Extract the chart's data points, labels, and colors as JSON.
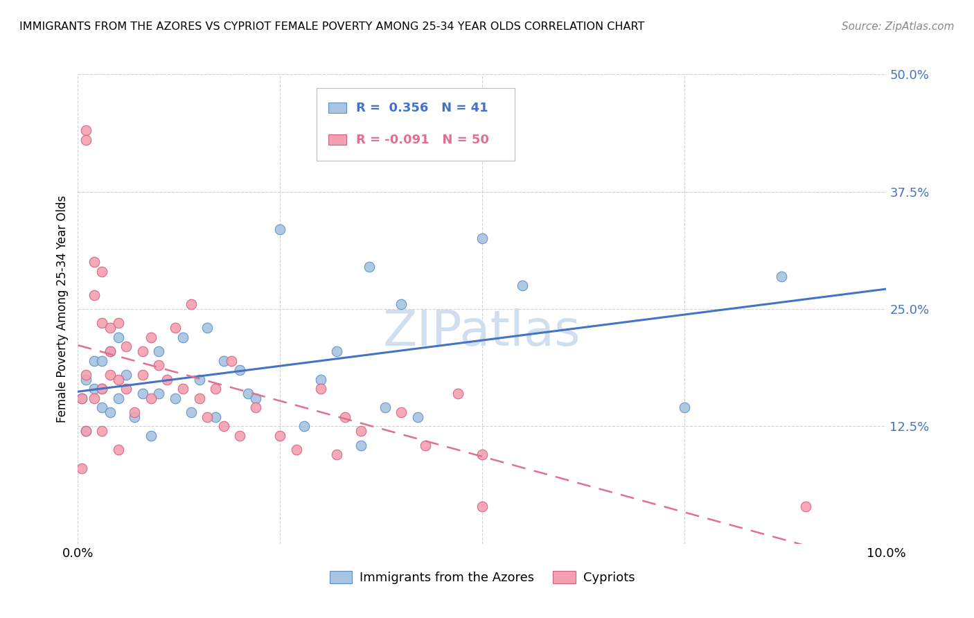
{
  "title": "IMMIGRANTS FROM THE AZORES VS CYPRIOT FEMALE POVERTY AMONG 25-34 YEAR OLDS CORRELATION CHART",
  "source": "Source: ZipAtlas.com",
  "ylabel": "Female Poverty Among 25-34 Year Olds",
  "xlim": [
    0.0,
    0.1
  ],
  "ylim": [
    0.0,
    0.5
  ],
  "yticks": [
    0.0,
    0.125,
    0.25,
    0.375,
    0.5
  ],
  "yticklabels": [
    "",
    "12.5%",
    "25.0%",
    "37.5%",
    "50.0%"
  ],
  "xticks": [
    0.0,
    0.025,
    0.05,
    0.075,
    0.1
  ],
  "xticklabels": [
    "0.0%",
    "",
    "",
    "",
    "10.0%"
  ],
  "legend_labels": [
    "Immigrants from the Azores",
    "Cypriots"
  ],
  "blue_color": "#a8c4e0",
  "pink_color": "#f4a0b0",
  "blue_edge_color": "#5b8cc8",
  "pink_edge_color": "#d06080",
  "blue_line_color": "#4472c4",
  "pink_line_color": "#e07090",
  "blue_R": 0.356,
  "blue_N": 41,
  "pink_R": -0.091,
  "pink_N": 50,
  "blue_scatter_x": [
    0.0005,
    0.001,
    0.001,
    0.002,
    0.002,
    0.003,
    0.003,
    0.003,
    0.004,
    0.004,
    0.005,
    0.005,
    0.006,
    0.007,
    0.008,
    0.009,
    0.01,
    0.01,
    0.012,
    0.013,
    0.014,
    0.015,
    0.016,
    0.017,
    0.018,
    0.02,
    0.021,
    0.022,
    0.025,
    0.028,
    0.03,
    0.032,
    0.035,
    0.036,
    0.038,
    0.04,
    0.042,
    0.05,
    0.055,
    0.075,
    0.087
  ],
  "blue_scatter_y": [
    0.155,
    0.175,
    0.12,
    0.195,
    0.165,
    0.195,
    0.165,
    0.145,
    0.205,
    0.14,
    0.22,
    0.155,
    0.18,
    0.135,
    0.16,
    0.115,
    0.205,
    0.16,
    0.155,
    0.22,
    0.14,
    0.175,
    0.23,
    0.135,
    0.195,
    0.185,
    0.16,
    0.155,
    0.335,
    0.125,
    0.175,
    0.205,
    0.105,
    0.295,
    0.145,
    0.255,
    0.135,
    0.325,
    0.275,
    0.145,
    0.285
  ],
  "pink_scatter_x": [
    0.0005,
    0.0005,
    0.001,
    0.001,
    0.001,
    0.001,
    0.002,
    0.002,
    0.002,
    0.003,
    0.003,
    0.003,
    0.003,
    0.004,
    0.004,
    0.004,
    0.005,
    0.005,
    0.005,
    0.006,
    0.006,
    0.007,
    0.008,
    0.008,
    0.009,
    0.009,
    0.01,
    0.011,
    0.012,
    0.013,
    0.014,
    0.015,
    0.016,
    0.017,
    0.018,
    0.019,
    0.02,
    0.022,
    0.025,
    0.027,
    0.03,
    0.032,
    0.033,
    0.035,
    0.04,
    0.043,
    0.047,
    0.05,
    0.05,
    0.09
  ],
  "pink_scatter_y": [
    0.155,
    0.08,
    0.44,
    0.43,
    0.18,
    0.12,
    0.3,
    0.265,
    0.155,
    0.29,
    0.235,
    0.165,
    0.12,
    0.23,
    0.205,
    0.18,
    0.235,
    0.175,
    0.1,
    0.21,
    0.165,
    0.14,
    0.205,
    0.18,
    0.22,
    0.155,
    0.19,
    0.175,
    0.23,
    0.165,
    0.255,
    0.155,
    0.135,
    0.165,
    0.125,
    0.195,
    0.115,
    0.145,
    0.115,
    0.1,
    0.165,
    0.095,
    0.135,
    0.12,
    0.14,
    0.105,
    0.16,
    0.04,
    0.095,
    0.04
  ],
  "background_color": "#ffffff",
  "grid_color": "#cccccc",
  "watermark_text": "ZIPatlas",
  "watermark_color": "#d0dff0"
}
